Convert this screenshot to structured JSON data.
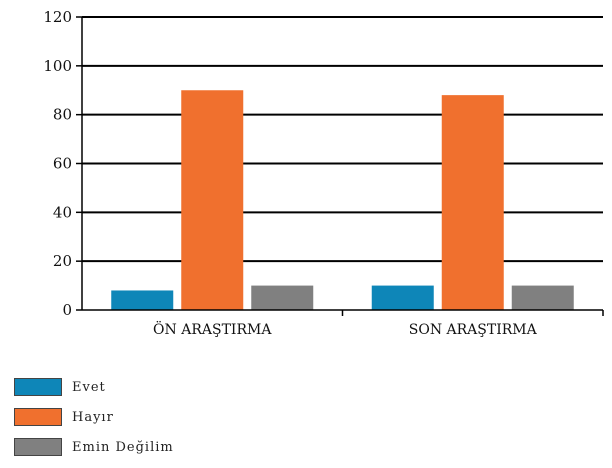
{
  "chart_data": {
    "type": "bar",
    "categories": [
      "ÖN ARAŞTIRMA",
      "SON ARAŞTIRMA"
    ],
    "series": [
      {
        "name": "Evet",
        "values": [
          8,
          10
        ],
        "color": "#0e86b8"
      },
      {
        "name": "Hayır",
        "values": [
          90,
          88
        ],
        "color": "#f0702e"
      },
      {
        "name": "Emin Değilim",
        "values": [
          10,
          10
        ],
        "color": "#808080"
      }
    ],
    "ylim": [
      0,
      120
    ],
    "yticks": [
      0,
      20,
      40,
      60,
      80,
      100,
      120
    ],
    "grid": true,
    "legend_position": "bottom-left",
    "title": "",
    "xlabel": "",
    "ylabel": ""
  }
}
